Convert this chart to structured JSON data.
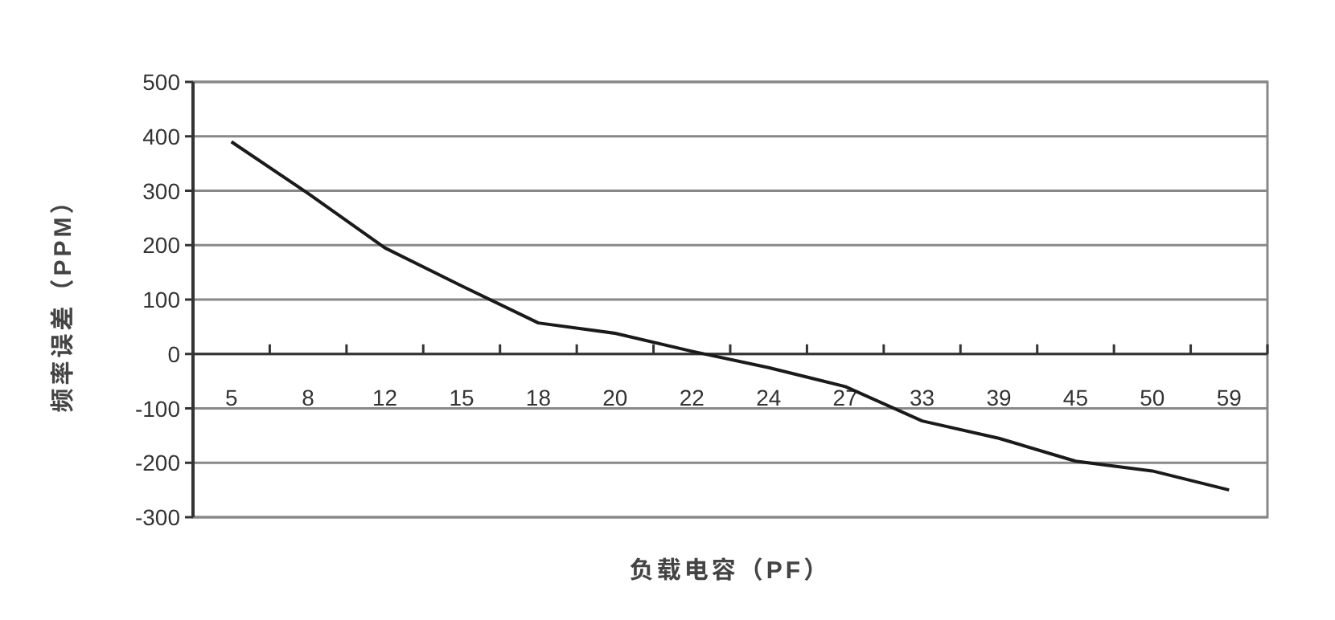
{
  "chart_data": {
    "type": "line",
    "xlabel": "负载电容（PF）",
    "ylabel": "频率误差（PPM）",
    "categories": [
      "5",
      "8",
      "12",
      "15",
      "18",
      "20",
      "22",
      "24",
      "27",
      "33",
      "39",
      "45",
      "50",
      "59"
    ],
    "series": [
      {
        "color": "#1a1a1a",
        "values": [
          390,
          295,
          195,
          125,
          57,
          38,
          5,
          -25,
          -60,
          -123,
          -155,
          -197,
          -215,
          -250
        ]
      }
    ],
    "ylim": [
      -300,
      500
    ],
    "yticks": [
      -300,
      -200,
      -100,
      0,
      100,
      200,
      300,
      400,
      500
    ],
    "grid": "y",
    "marker": "none",
    "line_style": "solid"
  }
}
